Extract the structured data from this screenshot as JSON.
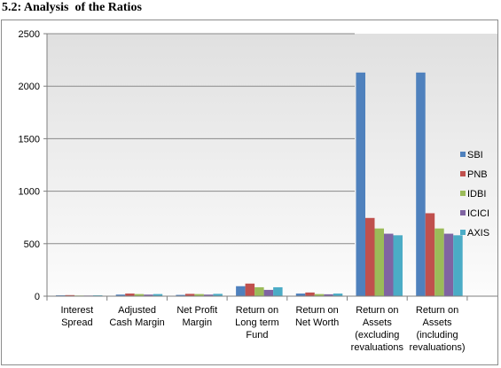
{
  "heading": "5.2: Analysis  of the Ratios",
  "chart_data": {
    "type": "bar",
    "title": "",
    "xlabel": "",
    "ylabel": "",
    "ylim": [
      0,
      2500
    ],
    "yticks": [
      0,
      500,
      1000,
      1500,
      2000,
      2500
    ],
    "grid": true,
    "legend_position": "right",
    "categories": [
      [
        "Interest",
        "Spread"
      ],
      [
        "Adjusted",
        "Cash Margin"
      ],
      [
        "Net Profit",
        "Margin"
      ],
      [
        "Return on",
        "Long term",
        "Fund"
      ],
      [
        "Return on",
        "Net Worth"
      ],
      [
        "Return on",
        "Assets",
        "(excluding",
        "revaluations"
      ],
      [
        "Return on",
        "Assets",
        "(including",
        "revaluations)"
      ]
    ],
    "series": [
      {
        "name": "SBI",
        "color": "#4F81BD",
        "values": [
          8,
          15,
          12,
          95,
          25,
          2130,
          2130
        ]
      },
      {
        "name": "PNB",
        "color": "#C0504D",
        "values": [
          10,
          25,
          22,
          120,
          35,
          745,
          790
        ]
      },
      {
        "name": "IDBI",
        "color": "#9BBB59",
        "values": [
          6,
          20,
          20,
          85,
          20,
          645,
          645
        ]
      },
      {
        "name": "ICICI",
        "color": "#8064A2",
        "values": [
          6,
          15,
          15,
          60,
          18,
          595,
          595
        ]
      },
      {
        "name": "AXIS",
        "color": "#4BACC6",
        "values": [
          8,
          20,
          22,
          85,
          25,
          580,
          580
        ]
      }
    ]
  }
}
